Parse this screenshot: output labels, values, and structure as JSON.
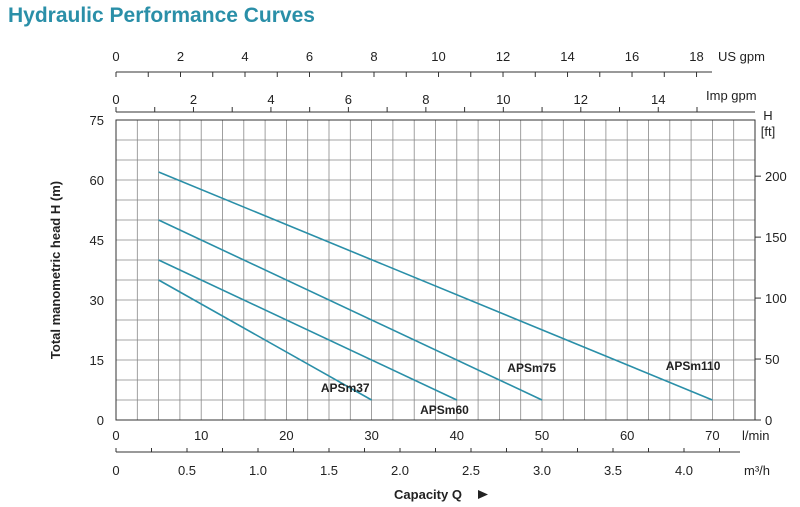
{
  "title": "Hydraulic Performance Curves",
  "colors": {
    "curve": "#2a8fa8",
    "title": "#2a8fa8",
    "grid": "#888888",
    "axis": "#333333"
  },
  "chart_data": {
    "type": "line",
    "title": "Hydraulic Performance Curves",
    "xlabel": "Capacity Q",
    "ylabel": "Total manometric head H (m)",
    "xlim": [
      0,
      75
    ],
    "ylim": [
      0,
      75
    ],
    "grid": true,
    "axes": {
      "left_m": {
        "ticks": [
          0,
          15,
          30,
          45,
          60,
          75
        ]
      },
      "right_ft": {
        "unit_top": "H",
        "unit_bottom": "[ft]",
        "ticks": [
          0,
          50,
          100,
          150,
          200
        ]
      },
      "bottom_lmin": {
        "unit": "l/min",
        "ticks": [
          0,
          10,
          20,
          30,
          40,
          50,
          60,
          70
        ]
      },
      "bottom_m3h": {
        "unit": "m³/h",
        "ticks": [
          "0",
          "0.5",
          "1.0",
          "1.5",
          "2.0",
          "2.5",
          "3.0",
          "3.5",
          "4.0"
        ]
      },
      "top_us_gpm": {
        "unit": "US gpm",
        "ticks": [
          0,
          2,
          4,
          6,
          8,
          10,
          12,
          14,
          16,
          18
        ]
      },
      "top_imp_gpm": {
        "unit": "Imp gpm",
        "ticks": [
          0,
          2,
          4,
          6,
          8,
          10,
          12,
          14
        ]
      }
    },
    "series": [
      {
        "name": "APSm37",
        "x": [
          5,
          30
        ],
        "y": [
          35,
          5
        ]
      },
      {
        "name": "APSm60",
        "x": [
          5,
          40
        ],
        "y": [
          40,
          5
        ]
      },
      {
        "name": "APSm75",
        "x": [
          5,
          50
        ],
        "y": [
          50,
          5
        ]
      },
      {
        "name": "APSm110",
        "x": [
          5,
          70
        ],
        "y": [
          62,
          5
        ]
      }
    ]
  }
}
